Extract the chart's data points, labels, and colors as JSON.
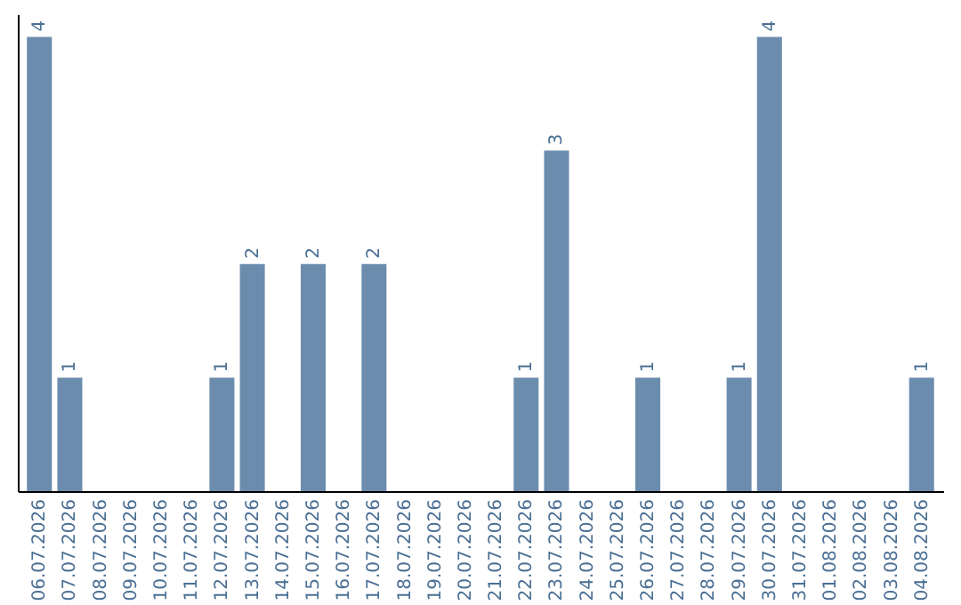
{
  "chart_data": {
    "type": "bar",
    "categories": [
      "06.07.2026",
      "07.07.2026",
      "08.07.2026",
      "09.07.2026",
      "10.07.2026",
      "11.07.2026",
      "12.07.2026",
      "13.07.2026",
      "14.07.2026",
      "15.07.2026",
      "16.07.2026",
      "17.07.2026",
      "18.07.2026",
      "19.07.2026",
      "20.07.2026",
      "21.07.2026",
      "22.07.2026",
      "23.07.2026",
      "24.07.2026",
      "25.07.2026",
      "26.07.2026",
      "27.07.2026",
      "28.07.2026",
      "29.07.2026",
      "30.07.2026",
      "31.07.2026",
      "01.08.2026",
      "02.08.2026",
      "03.08.2026",
      "04.08.2026"
    ],
    "values": [
      4,
      1,
      0,
      0,
      0,
      0,
      1,
      2,
      0,
      2,
      0,
      2,
      0,
      0,
      0,
      0,
      1,
      3,
      0,
      0,
      1,
      0,
      0,
      1,
      4,
      0,
      0,
      0,
      0,
      1
    ],
    "value_labels": [
      "4",
      "1",
      null,
      null,
      null,
      null,
      "1",
      "2",
      null,
      "2",
      null,
      "2",
      null,
      null,
      null,
      null,
      "1",
      "3",
      null,
      null,
      "1",
      null,
      null,
      "1",
      "4",
      null,
      null,
      null,
      null,
      "1"
    ],
    "color": "#6b8cad",
    "ylim": [
      0,
      4.2
    ],
    "tick_labels": "x",
    "grid": false
  }
}
